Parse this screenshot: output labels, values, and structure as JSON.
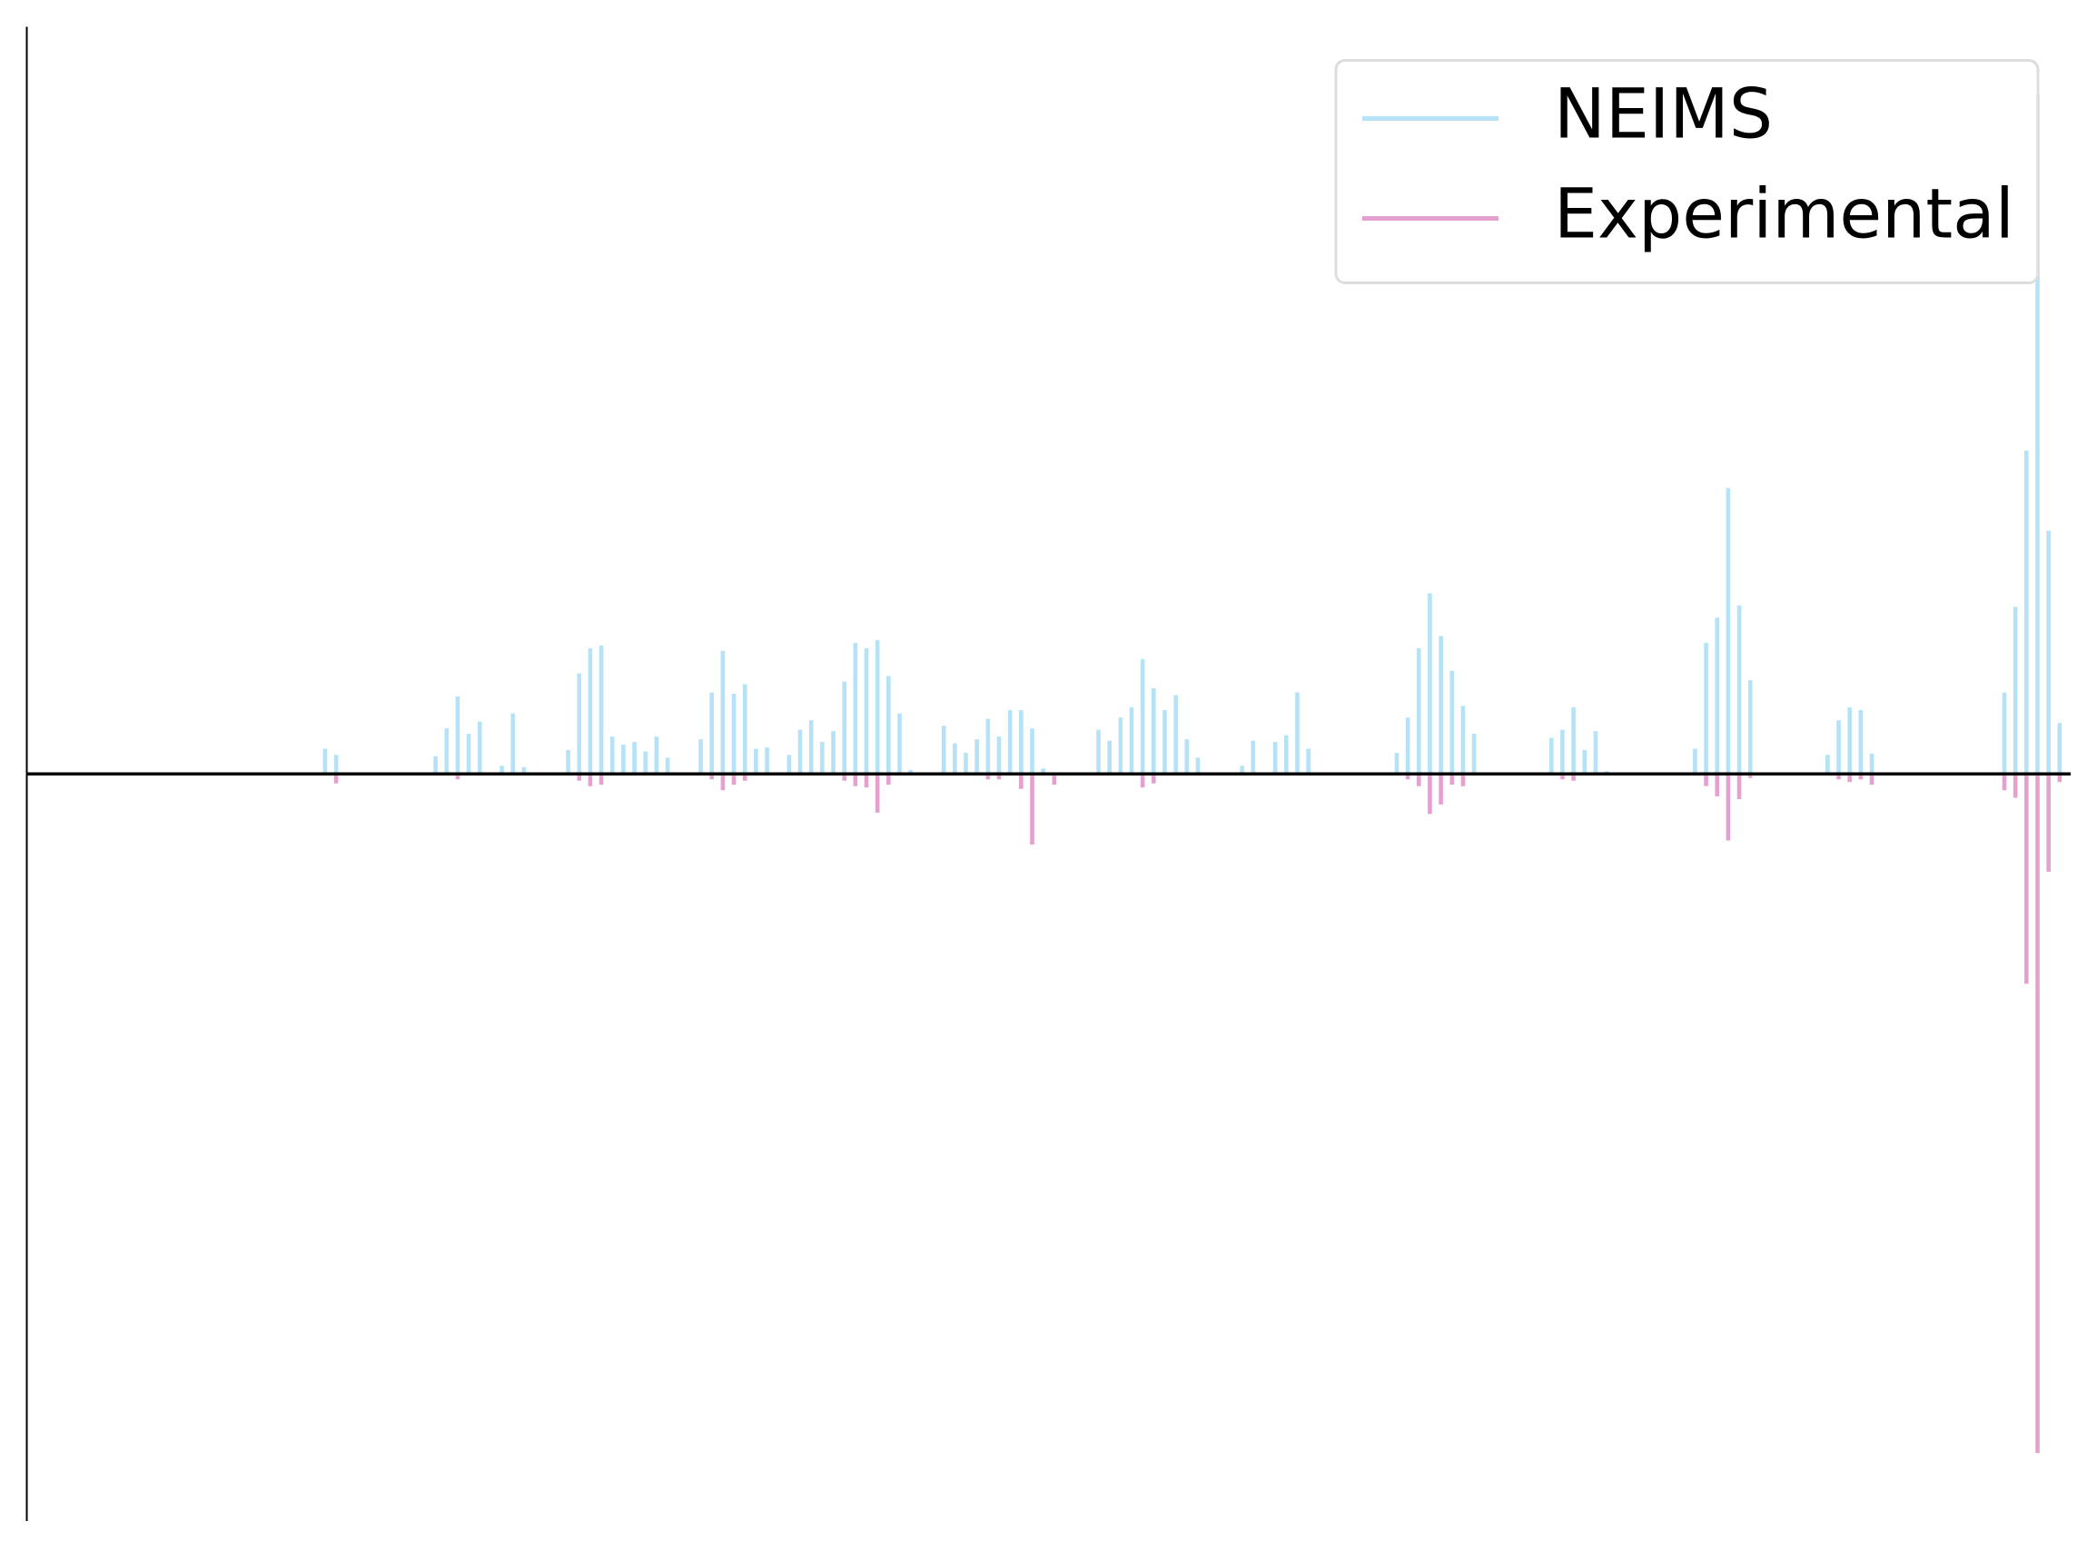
{
  "chart_data": {
    "type": "bar",
    "x": [
      27,
      28,
      37,
      38,
      39,
      40,
      41,
      43,
      44,
      45,
      49,
      50,
      51,
      52,
      53,
      54,
      55,
      56,
      57,
      58,
      61,
      62,
      63,
      64,
      65,
      66,
      67,
      69,
      70,
      71,
      72,
      73,
      74,
      75,
      76,
      77,
      78,
      79,
      80,
      83,
      84,
      85,
      86,
      87,
      88,
      89,
      90,
      91,
      92,
      93,
      97,
      98,
      99,
      100,
      101,
      102,
      103,
      104,
      105,
      106,
      110,
      111,
      113,
      114,
      115,
      116,
      124,
      125,
      126,
      127,
      128,
      129,
      130,
      131,
      138,
      139,
      140,
      141,
      142,
      143,
      151,
      152,
      153,
      154,
      155,
      156,
      163,
      164,
      165,
      166,
      167,
      179,
      180,
      181,
      182,
      183,
      184
    ],
    "series": [
      {
        "name": "NEIMS",
        "color": "#b5e2f7",
        "values": [
          0.037,
          0.028,
          0.026,
          0.067,
          0.114,
          0.059,
          0.077,
          0.012,
          0.089,
          0.01,
          0.035,
          0.148,
          0.185,
          0.189,
          0.055,
          0.043,
          0.047,
          0.033,
          0.055,
          0.024,
          0.051,
          0.12,
          0.181,
          0.118,
          0.132,
          0.037,
          0.039,
          0.028,
          0.065,
          0.079,
          0.047,
          0.063,
          0.136,
          0.193,
          0.185,
          0.197,
          0.144,
          0.089,
          0.006,
          0.071,
          0.045,
          0.031,
          0.051,
          0.081,
          0.055,
          0.094,
          0.094,
          0.067,
          0.008,
          0,
          0.065,
          0.049,
          0.083,
          0.098,
          0.169,
          0.126,
          0.094,
          0.116,
          0.051,
          0.024,
          0.012,
          0.049,
          0.047,
          0.057,
          0.12,
          0.037,
          0.031,
          0.083,
          0.185,
          0.266,
          0.203,
          0.152,
          0.1,
          0.059,
          0.053,
          0.065,
          0.098,
          0.035,
          0.063,
          0.004,
          0.037,
          0.193,
          0.23,
          0.421,
          0.248,
          0.138,
          0.028,
          0.079,
          0.098,
          0.094,
          0.03,
          0.12,
          0.246,
          0.476,
          1.0,
          0.358,
          0.075
        ]
      },
      {
        "name": "Experimental",
        "color": "#e5a0cf",
        "values": [
          0,
          -0.014,
          0,
          0,
          -0.008,
          0,
          0,
          0,
          0,
          0,
          0,
          -0.01,
          -0.018,
          -0.016,
          0,
          0,
          0,
          0,
          0,
          0,
          0,
          -0.008,
          -0.024,
          -0.016,
          -0.01,
          0,
          0,
          0,
          0,
          0,
          0,
          0,
          -0.01,
          -0.018,
          -0.02,
          -0.057,
          -0.016,
          0,
          0,
          0,
          0,
          0,
          0,
          -0.008,
          -0.008,
          0,
          -0.022,
          -0.104,
          0,
          -0.016,
          0,
          0,
          0,
          0,
          -0.02,
          -0.014,
          0,
          0,
          0,
          0,
          0,
          0,
          0,
          0,
          0,
          0,
          0,
          -0.008,
          -0.018,
          -0.059,
          -0.045,
          -0.016,
          -0.018,
          0,
          0,
          -0.008,
          -0.01,
          0,
          0,
          0,
          0,
          -0.018,
          -0.033,
          -0.098,
          -0.037,
          -0.006,
          0,
          -0.008,
          -0.012,
          -0.008,
          -0.016,
          -0.024,
          -0.035,
          -0.309,
          -1.0,
          -0.144,
          -0.012
        ]
      }
    ],
    "xlim": [
      0,
      185
    ],
    "ylim": [
      -1.1,
      1.1
    ],
    "legend": "upper right"
  }
}
